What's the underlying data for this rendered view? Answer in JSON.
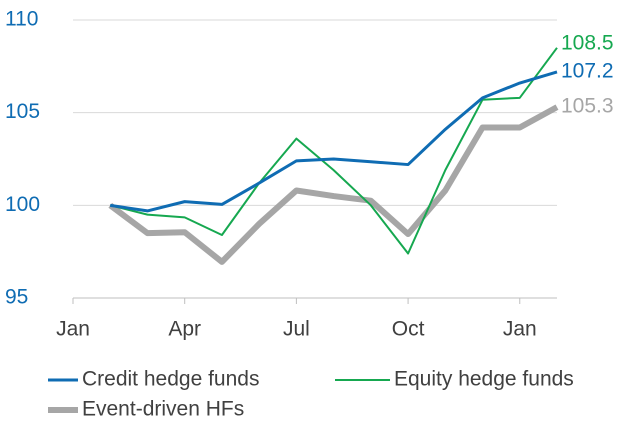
{
  "chart_data": {
    "type": "line",
    "categories": [
      "Jan",
      null,
      null,
      "Apr",
      null,
      null,
      "Jul",
      null,
      null,
      "Oct",
      null,
      null,
      "Jan",
      null
    ],
    "series": [
      {
        "name": "Credit hedge funds",
        "color": "#0f6cb3",
        "values": [
          null,
          100,
          99.7,
          100.2,
          100.05,
          101.2,
          102.4,
          102.5,
          102.35,
          102.2,
          104.1,
          105.8,
          106.6,
          107.2
        ]
      },
      {
        "name": "Equity hedge funds",
        "color": "#16a850",
        "values": [
          null,
          100,
          99.5,
          99.35,
          98.4,
          101.2,
          103.6,
          101.9,
          100,
          97.4,
          101.9,
          105.7,
          105.8,
          108.5
        ]
      },
      {
        "name": "Event-driven HFs",
        "color": "#a6a6a6",
        "values": [
          null,
          100,
          98.5,
          98.55,
          96.95,
          99,
          100.8,
          100.5,
          100.25,
          98.45,
          100.8,
          104.2,
          104.2,
          105.3
        ]
      }
    ],
    "ylim": [
      95,
      110
    ],
    "yticks": [
      95,
      100,
      105,
      110
    ],
    "grid": true
  }
}
